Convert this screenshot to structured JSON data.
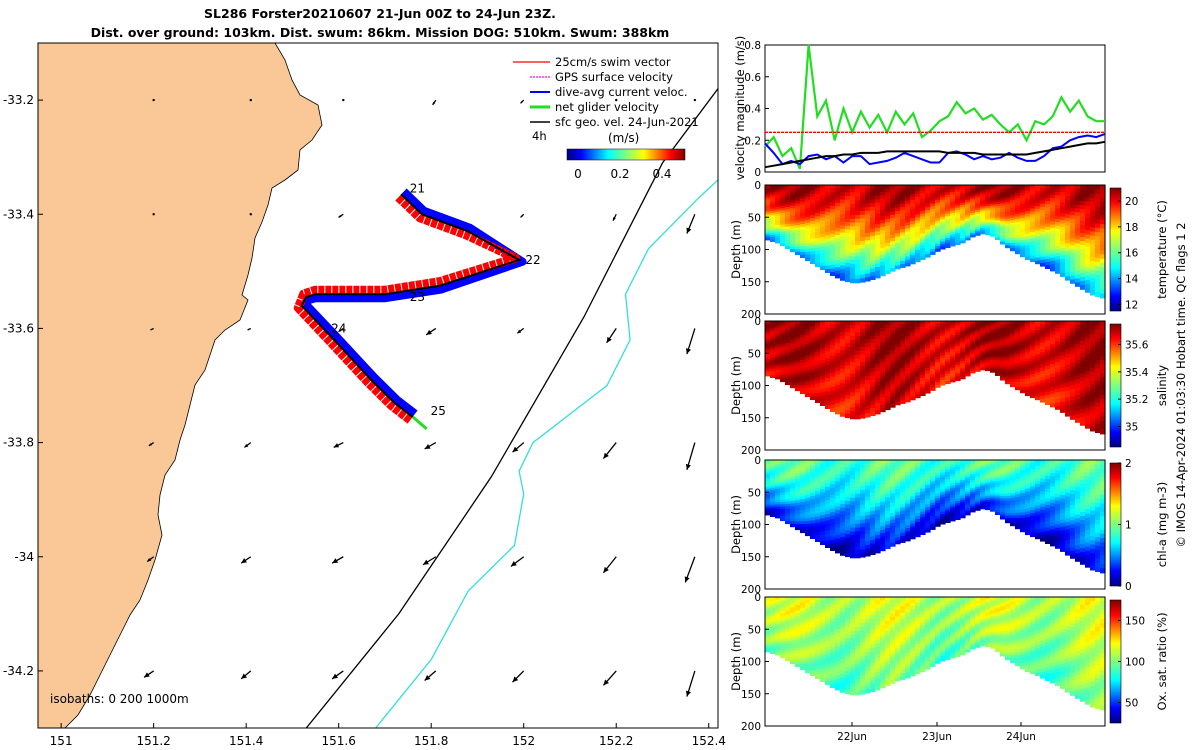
{
  "header": {
    "title_line1": "SL286 Forster20210607 21-Jun 00Z to 24-Jun 23Z.",
    "title_line2": "Dist. over ground: 103km. Dist. swum: 86km. Mission DOG: 510km. Swum: 388km"
  },
  "credit": "© IMOS 14-Apr-2024 01:03:30 Hobart time. QC flags 1  2",
  "colors": {
    "land": "#f9c896",
    "swim": "#ff0000",
    "current": "#0000ff",
    "net": "#22dd22",
    "isobath_1000": "#33dddd"
  },
  "chart_data": [
    {
      "type": "map",
      "name": "glider-track-map",
      "xlim": [
        150.95,
        152.42
      ],
      "ylim": [
        -34.3,
        -33.1
      ],
      "x_ticks": [
        "151",
        "151.2",
        "151.4",
        "151.6",
        "151.8",
        "152",
        "152.2",
        "152.4"
      ],
      "y_ticks": [
        "-33.2",
        "-33.4",
        "-33.6",
        "-33.8",
        "-34",
        "-34.2"
      ],
      "legend": {
        "entries": [
          "25cm/s swim vector",
          "GPS surface velocity",
          "dive-avg current veloc.",
          "net glider velocity",
          "sfc geo. vel. 24-Jun-2021"
        ],
        "time_label": "4h",
        "colorbar_label": "(m/s)",
        "colorbar_ticks": [
          "0",
          "0.2",
          "0.4"
        ]
      },
      "isobath_label": "isobaths: 0   200  1000m",
      "day_labels": [
        {
          "text": "21",
          "lon": 151.745,
          "lat": -33.355
        },
        {
          "text": "22",
          "lon": 151.995,
          "lat": -33.48
        },
        {
          "text": "23",
          "lon": 151.745,
          "lat": -33.545
        },
        {
          "text": "24",
          "lon": 151.575,
          "lat": -33.6
        },
        {
          "text": "25",
          "lon": 151.79,
          "lat": -33.745
        }
      ],
      "track": [
        [
          151.735,
          -33.365
        ],
        [
          151.78,
          -33.4
        ],
        [
          151.88,
          -33.43
        ],
        [
          151.99,
          -33.48
        ],
        [
          151.82,
          -33.525
        ],
        [
          151.7,
          -33.54
        ],
        [
          151.55,
          -33.54
        ],
        [
          151.53,
          -33.545
        ],
        [
          151.52,
          -33.56
        ],
        [
          151.59,
          -33.62
        ],
        [
          151.67,
          -33.69
        ],
        [
          151.72,
          -33.73
        ],
        [
          151.76,
          -33.755
        ]
      ],
      "isobath_200": [
        [
          152.42,
          -33.18
        ],
        [
          152.3,
          -33.31
        ],
        [
          152.13,
          -33.58
        ],
        [
          151.93,
          -33.86
        ],
        [
          151.73,
          -34.1
        ],
        [
          151.53,
          -34.3
        ]
      ],
      "isobath_1000": [
        [
          152.42,
          -33.34
        ],
        [
          152.38,
          -33.37
        ],
        [
          152.27,
          -33.46
        ],
        [
          152.22,
          -33.54
        ],
        [
          152.23,
          -33.62
        ],
        [
          152.18,
          -33.7
        ],
        [
          152.02,
          -33.8
        ],
        [
          151.99,
          -33.85
        ],
        [
          152.0,
          -33.89
        ],
        [
          151.98,
          -33.98
        ],
        [
          151.88,
          -34.06
        ],
        [
          151.8,
          -34.18
        ],
        [
          151.74,
          -34.24
        ],
        [
          151.68,
          -34.3
        ]
      ],
      "vector_lons": [
        151.2,
        151.41,
        151.61,
        151.81,
        152.0,
        152.2,
        152.37
      ],
      "vector_lats": [
        -33.2,
        -33.4,
        -33.6,
        -33.8,
        -34.0,
        -34.2
      ],
      "vectors_u": [
        [
          0,
          0,
          0,
          -0.02,
          -0.02,
          0,
          0
        ],
        [
          0,
          0,
          -0.03,
          -0.03,
          -0.02,
          -0.02,
          -0.05
        ],
        [
          -0.02,
          -0.02,
          -0.03,
          -0.06,
          -0.04,
          -0.06,
          -0.05
        ],
        [
          -0.03,
          -0.04,
          -0.06,
          -0.07,
          -0.07,
          -0.08,
          -0.05
        ],
        [
          -0.04,
          -0.06,
          -0.07,
          -0.08,
          -0.08,
          -0.08,
          -0.06
        ],
        [
          -0.06,
          -0.06,
          -0.07,
          -0.07,
          -0.07,
          -0.08,
          -0.05
        ]
      ],
      "vectors_v": [
        [
          0,
          0,
          0,
          -0.03,
          -0.02,
          0,
          0
        ],
        [
          0,
          0,
          -0.02,
          -0.02,
          -0.02,
          -0.04,
          -0.12
        ],
        [
          -0.01,
          -0.01,
          -0.02,
          -0.04,
          -0.03,
          -0.09,
          -0.16
        ],
        [
          -0.02,
          -0.03,
          -0.03,
          -0.04,
          -0.06,
          -0.1,
          -0.17
        ],
        [
          -0.03,
          -0.04,
          -0.04,
          -0.05,
          -0.06,
          -0.1,
          -0.16
        ],
        [
          -0.04,
          -0.05,
          -0.05,
          -0.06,
          -0.07,
          -0.09,
          -0.16
        ]
      ]
    },
    {
      "type": "line",
      "name": "velocity-magnitude",
      "ylabel": "velocity magnitude (m/s)",
      "ylim": [
        0,
        0.8
      ],
      "y_ticks": [
        "0",
        "0.2",
        "0.4",
        "0.6",
        "0.8"
      ],
      "series": [
        {
          "name": "net glider velocity",
          "color": "#22dd22",
          "values": [
            0.16,
            0.22,
            0.1,
            0.15,
            0.02,
            0.8,
            0.35,
            0.45,
            0.2,
            0.4,
            0.25,
            0.38,
            0.28,
            0.36,
            0.25,
            0.38,
            0.3,
            0.37,
            0.22,
            0.26,
            0.32,
            0.35,
            0.44,
            0.37,
            0.4,
            0.33,
            0.36,
            0.3,
            0.25,
            0.3,
            0.2,
            0.32,
            0.3,
            0.35,
            0.47,
            0.38,
            0.45,
            0.35,
            0.32,
            0.32
          ]
        },
        {
          "name": "swim vector",
          "color": "#ff0000",
          "values": [
            0.25,
            0.25,
            0.25,
            0.25,
            0.25,
            0.25,
            0.25,
            0.25,
            0.25,
            0.25,
            0.25,
            0.25,
            0.25,
            0.25,
            0.25,
            0.25,
            0.25,
            0.25,
            0.25,
            0.25,
            0.25,
            0.25,
            0.25,
            0.25,
            0.25,
            0.25,
            0.25,
            0.25,
            0.25,
            0.25,
            0.25,
            0.25,
            0.25,
            0.25,
            0.25,
            0.25,
            0.25,
            0.25,
            0.25,
            0.25
          ]
        },
        {
          "name": "dive-avg current",
          "color": "#0000ff",
          "values": [
            0.18,
            0.12,
            0.05,
            0.07,
            0.05,
            0.1,
            0.11,
            0.08,
            0.1,
            0.06,
            0.1,
            0.1,
            0.05,
            0.06,
            0.07,
            0.09,
            0.12,
            0.1,
            0.08,
            0.06,
            0.06,
            0.12,
            0.13,
            0.11,
            0.08,
            0.1,
            0.08,
            0.09,
            0.12,
            0.09,
            0.07,
            0.07,
            0.1,
            0.15,
            0.16,
            0.2,
            0.22,
            0.23,
            0.22,
            0.24
          ]
        },
        {
          "name": "sfc geo vel",
          "color": "#000000",
          "values": [
            0.03,
            0.04,
            0.05,
            0.06,
            0.07,
            0.08,
            0.09,
            0.1,
            0.1,
            0.11,
            0.11,
            0.12,
            0.12,
            0.12,
            0.13,
            0.13,
            0.13,
            0.13,
            0.13,
            0.13,
            0.13,
            0.12,
            0.12,
            0.12,
            0.12,
            0.11,
            0.11,
            0.11,
            0.11,
            0.11,
            0.11,
            0.12,
            0.13,
            0.14,
            0.15,
            0.16,
            0.17,
            0.18,
            0.18,
            0.19
          ]
        }
      ]
    },
    {
      "type": "heatmap",
      "name": "temperature-section",
      "ylabel": "Depth (m)",
      "cbar_label": "temperature (°C)",
      "ylim": [
        0,
        200
      ],
      "y_ticks": [
        "0",
        "50",
        "100",
        "150",
        "200"
      ],
      "clim": [
        11.5,
        21
      ],
      "cbar_ticks": [
        "12",
        "14",
        "16",
        "18",
        "20"
      ],
      "bottom_depth": [
        85,
        90,
        100,
        110,
        120,
        130,
        140,
        148,
        152,
        150,
        145,
        138,
        130,
        125,
        118,
        110,
        100,
        95,
        90,
        80,
        75,
        80,
        95,
        105,
        115,
        122,
        130,
        138,
        150,
        160,
        170,
        175
      ],
      "surface_value": 20.5,
      "deep_value": 14
    },
    {
      "type": "heatmap",
      "name": "salinity-section",
      "ylabel": "Depth (m)",
      "cbar_label": "salinity",
      "ylim": [
        0,
        200
      ],
      "y_ticks": [
        "0",
        "50",
        "100",
        "150",
        "200"
      ],
      "clim": [
        34.85,
        35.75
      ],
      "cbar_ticks": [
        "35",
        "35.2",
        "35.4",
        "35.6"
      ],
      "bottom_depth": [
        85,
        90,
        100,
        110,
        120,
        130,
        140,
        148,
        152,
        150,
        145,
        138,
        130,
        125,
        118,
        110,
        100,
        95,
        90,
        80,
        75,
        80,
        95,
        105,
        115,
        122,
        130,
        138,
        150,
        160,
        170,
        175
      ],
      "surface_value": 35.7,
      "deep_value": 35.65
    },
    {
      "type": "heatmap",
      "name": "chla-section",
      "ylabel": "Depth (m)",
      "cbar_label": "chl-a (mg m-3)",
      "ylim": [
        0,
        200
      ],
      "y_ticks": [
        "0",
        "50",
        "100",
        "150",
        "200"
      ],
      "clim": [
        0,
        2
      ],
      "cbar_ticks": [
        "0",
        "1",
        "2"
      ],
      "bottom_depth": [
        85,
        90,
        100,
        110,
        120,
        130,
        140,
        148,
        152,
        150,
        145,
        138,
        130,
        125,
        118,
        110,
        100,
        95,
        90,
        80,
        75,
        80,
        95,
        105,
        115,
        122,
        130,
        138,
        150,
        160,
        170,
        175
      ],
      "surface_value": 0.9,
      "deep_value": 0.15
    },
    {
      "type": "heatmap",
      "name": "oxygen-section",
      "ylabel": "Depth (m)",
      "cbar_label": "Ox. sat. ratio (%)",
      "ylim": [
        0,
        200
      ],
      "y_ticks": [
        "0",
        "50",
        "100",
        "150",
        "200"
      ],
      "clim": [
        25,
        175
      ],
      "cbar_ticks": [
        "50",
        "100",
        "150"
      ],
      "x_ticks": [
        "22Jun",
        "23Jun",
        "24Jun"
      ],
      "bottom_depth": [
        85,
        90,
        100,
        110,
        120,
        130,
        140,
        148,
        152,
        150,
        145,
        138,
        130,
        125,
        118,
        110,
        100,
        95,
        90,
        80,
        75,
        80,
        95,
        105,
        115,
        122,
        130,
        138,
        150,
        160,
        170,
        175
      ],
      "surface_value": 110,
      "deep_value": 95
    }
  ]
}
